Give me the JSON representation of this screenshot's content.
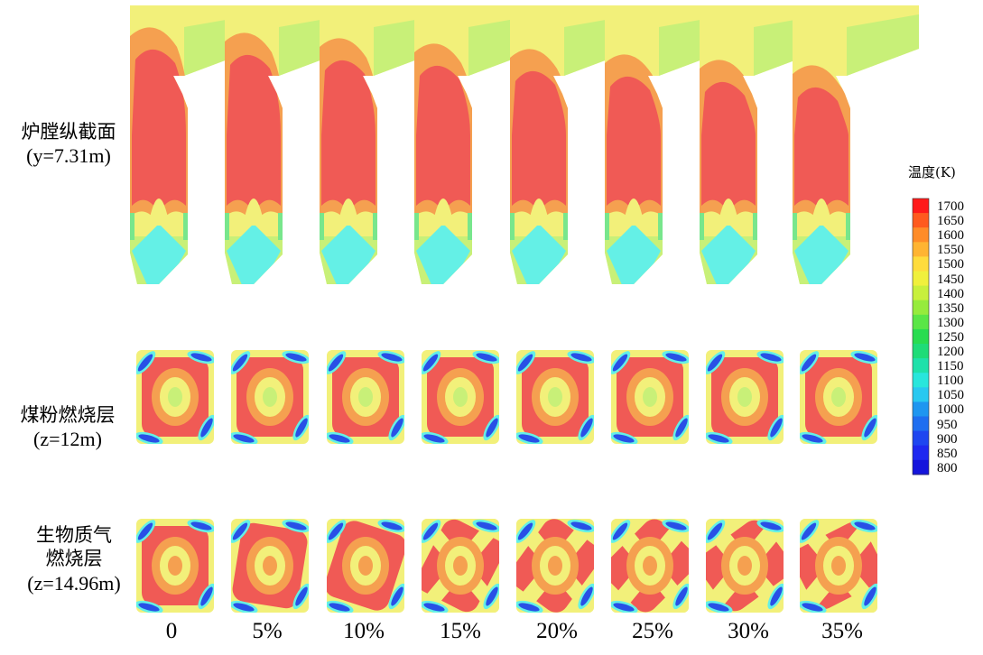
{
  "row_labels": [
    {
      "zh": "炉膛纵截面",
      "en": "(y=7.31m)"
    },
    {
      "zh": "煤粉燃烧层",
      "en": "(z=12m)"
    },
    {
      "zh_lines": [
        "生物质气",
        "燃烧层"
      ],
      "en": "(z=14.96m)"
    }
  ],
  "columns": [
    "0",
    "5%",
    "10%",
    "15%",
    "20%",
    "25%",
    "30%",
    "35%"
  ],
  "legend": {
    "title": "温度(K)",
    "ticks": [
      "1700",
      "1650",
      "1600",
      "1550",
      "1500",
      "1450",
      "1400",
      "1350",
      "1300",
      "1250",
      "1200",
      "1150",
      "1100",
      "1050",
      "1000",
      "950",
      "900",
      "850",
      "800"
    ],
    "colors": [
      "#ff1a1a",
      "#ff5a1e",
      "#ff8c28",
      "#ffb432",
      "#ffdc3c",
      "#f0f03c",
      "#c8f03c",
      "#96eb3c",
      "#5ae646",
      "#28dc50",
      "#1edc78",
      "#1ee1aa",
      "#28e6dc",
      "#28c8f0",
      "#1e96f0",
      "#1e6ef0",
      "#1e46f0",
      "#1e28f0",
      "#1414dc"
    ]
  },
  "palette": {
    "red": "#f05a55",
    "orange": "#f5a050",
    "yellow": "#f2f07a",
    "lime": "#c8f078",
    "green": "#78e68c",
    "cyan": "#64f0e6",
    "blue": "#2850e6"
  }
}
